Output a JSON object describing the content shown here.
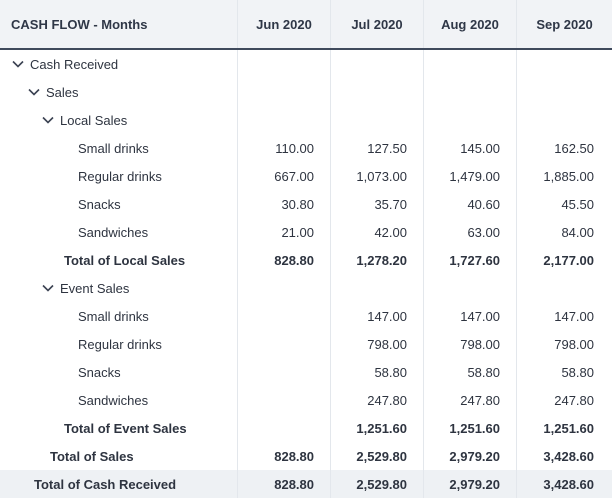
{
  "header": {
    "title": "CASH FLOW - Months",
    "months": [
      "Jun 2020",
      "Jul 2020",
      "Aug 2020",
      "Sep 2020"
    ]
  },
  "rows": [
    {
      "label": "Cash Received",
      "values": [
        "",
        "",
        "",
        ""
      ]
    },
    {
      "label": "Sales",
      "values": [
        "",
        "",
        "",
        ""
      ]
    },
    {
      "label": "Local Sales",
      "values": [
        "",
        "",
        "",
        ""
      ]
    },
    {
      "label": "Small drinks",
      "values": [
        "110.00",
        "127.50",
        "145.00",
        "162.50"
      ]
    },
    {
      "label": "Regular drinks",
      "values": [
        "667.00",
        "1,073.00",
        "1,479.00",
        "1,885.00"
      ]
    },
    {
      "label": "Snacks",
      "values": [
        "30.80",
        "35.70",
        "40.60",
        "45.50"
      ]
    },
    {
      "label": "Sandwiches",
      "values": [
        "21.00",
        "42.00",
        "63.00",
        "84.00"
      ]
    },
    {
      "label": "Total of Local Sales",
      "values": [
        "828.80",
        "1,278.20",
        "1,727.60",
        "2,177.00"
      ]
    },
    {
      "label": "Event Sales",
      "values": [
        "",
        "",
        "",
        ""
      ]
    },
    {
      "label": "Small drinks",
      "values": [
        "",
        "147.00",
        "147.00",
        "147.00"
      ]
    },
    {
      "label": "Regular drinks",
      "values": [
        "",
        "798.00",
        "798.00",
        "798.00"
      ]
    },
    {
      "label": "Snacks",
      "values": [
        "",
        "58.80",
        "58.80",
        "58.80"
      ]
    },
    {
      "label": "Sandwiches",
      "values": [
        "",
        "247.80",
        "247.80",
        "247.80"
      ]
    },
    {
      "label": "Total of Event Sales",
      "values": [
        "",
        "1,251.60",
        "1,251.60",
        "1,251.60"
      ]
    },
    {
      "label": "Total of Sales",
      "values": [
        "828.80",
        "2,529.80",
        "2,979.20",
        "3,428.60"
      ]
    },
    {
      "label": "Total of Cash Received",
      "values": [
        "828.80",
        "2,529.80",
        "2,979.20",
        "3,428.60"
      ]
    }
  ]
}
